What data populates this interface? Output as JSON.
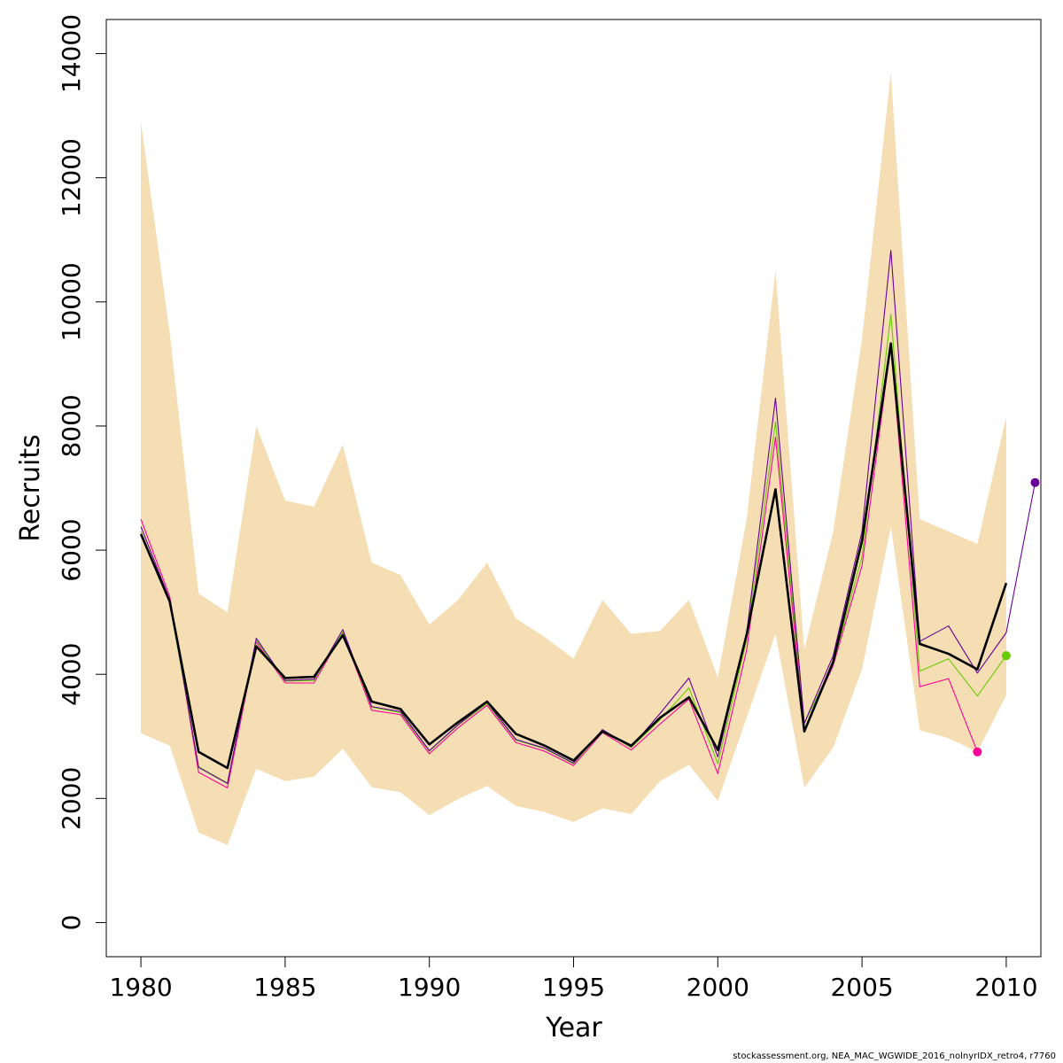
{
  "chart_data": {
    "type": "line",
    "title": "",
    "xlabel": "Year",
    "ylabel": "Recruits",
    "xlim": [
      1978.8,
      2011.2
    ],
    "ylim": [
      -550,
      14550
    ],
    "x_ticks": [
      1980,
      1985,
      1990,
      1995,
      2000,
      2005,
      2010
    ],
    "y_ticks": [
      0,
      2000,
      4000,
      6000,
      8000,
      10000,
      12000,
      14000
    ],
    "grid": false,
    "legend": "none",
    "colors": {
      "band": "#f5deb3",
      "main": "#000000",
      "purple": "#660099",
      "green": "#66cc00",
      "pink": "#ff0099"
    },
    "band": {
      "x": [
        1980,
        1981,
        1982,
        1983,
        1984,
        1985,
        1986,
        1987,
        1988,
        1989,
        1990,
        1991,
        1992,
        1993,
        1994,
        1995,
        1996,
        1997,
        1998,
        1999,
        2000,
        2001,
        2002,
        2003,
        2004,
        2005,
        2006,
        2007,
        2008,
        2009,
        2010
      ],
      "upper": [
        12900,
        9500,
        5300,
        5000,
        8000,
        6800,
        6700,
        7700,
        5800,
        5600,
        4800,
        5200,
        5800,
        4900,
        4600,
        4250,
        5200,
        4650,
        4700,
        5200,
        3950,
        6500,
        10500,
        4400,
        6300,
        9400,
        13700,
        6500,
        6300,
        6100,
        8150
      ],
      "lower": [
        3050,
        2850,
        1450,
        1250,
        2480,
        2280,
        2350,
        2800,
        2180,
        2100,
        1730,
        1990,
        2200,
        1880,
        1780,
        1620,
        1840,
        1750,
        2280,
        2540,
        1960,
        3300,
        4650,
        2170,
        2820,
        4080,
        6380,
        3100,
        2970,
        2750,
        3660
      ]
    },
    "series": [
      {
        "color_key": "pink",
        "x": [
          1980,
          1981,
          1982,
          1983,
          1984,
          1985,
          1986,
          1987,
          1988,
          1989,
          1990,
          1991,
          1992,
          1993,
          1994,
          1995,
          1996,
          1997,
          1998,
          1999,
          2000,
          2001,
          2002,
          2003,
          2004,
          2005,
          2006,
          2007,
          2008,
          2009
        ],
        "y": [
          6500,
          5250,
          2420,
          2170,
          4520,
          3860,
          3860,
          4670,
          3420,
          3350,
          2720,
          3140,
          3500,
          2900,
          2760,
          2530,
          3060,
          2780,
          3200,
          3600,
          2400,
          4390,
          7820,
          3110,
          4140,
          5750,
          9300,
          3800,
          3930,
          2750
        ],
        "end_point": true
      },
      {
        "color_key": "green",
        "x": [
          1980,
          1981,
          1982,
          1983,
          1984,
          1985,
          1986,
          1987,
          1988,
          1989,
          1990,
          1991,
          1992,
          1993,
          1994,
          1995,
          1996,
          1997,
          1998,
          1999,
          2000,
          2001,
          2002,
          2003,
          2004,
          2005,
          2006,
          2007,
          2008,
          2009,
          2010
        ],
        "y": [
          6300,
          5150,
          2510,
          2250,
          4550,
          3890,
          3900,
          4680,
          3470,
          3380,
          2760,
          3180,
          3530,
          2940,
          2800,
          2560,
          3090,
          2820,
          3270,
          3780,
          2560,
          4560,
          8070,
          3210,
          4170,
          5900,
          9800,
          4050,
          4250,
          3650,
          4300
        ],
        "end_point": true
      },
      {
        "color_key": "purple",
        "x": [
          1980,
          1981,
          1982,
          1983,
          1984,
          1985,
          1986,
          1987,
          1988,
          1989,
          1990,
          1991,
          1992,
          1993,
          1994,
          1995,
          1996,
          1997,
          1998,
          1999,
          2000,
          2001,
          2002,
          2003,
          2004,
          2005,
          2006,
          2007,
          2008,
          2009,
          2010,
          2011
        ],
        "y": [
          6380,
          5200,
          2500,
          2240,
          4580,
          3900,
          3920,
          4720,
          3480,
          3400,
          2770,
          3190,
          3550,
          2950,
          2810,
          2570,
          3110,
          2830,
          3370,
          3940,
          2670,
          4660,
          8450,
          3210,
          4300,
          6300,
          10830,
          4530,
          4780,
          4020,
          4670,
          7090
        ],
        "end_point": true
      },
      {
        "color_key": "main",
        "x": [
          1980,
          1981,
          1982,
          1983,
          1984,
          1985,
          1986,
          1987,
          1988,
          1989,
          1990,
          1991,
          1992,
          1993,
          1994,
          1995,
          1996,
          1997,
          1998,
          1999,
          2000,
          2001,
          2002,
          2003,
          2004,
          2005,
          2006,
          2007,
          2008,
          2009,
          2010
        ],
        "y": [
          6260,
          5170,
          2750,
          2490,
          4450,
          3940,
          3960,
          4630,
          3560,
          3440,
          2870,
          3230,
          3560,
          3040,
          2850,
          2610,
          3080,
          2850,
          3300,
          3630,
          2780,
          4640,
          6980,
          3080,
          4200,
          6150,
          9330,
          4490,
          4330,
          4080,
          5470
        ],
        "end_point": false
      }
    ]
  },
  "footer": {
    "text": "stockassessment.org, NEA_MAC_WGWIDE_2016_nolnyrIDX_retro4, r7760"
  }
}
